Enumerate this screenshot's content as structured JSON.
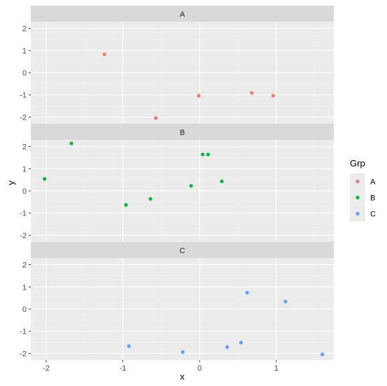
{
  "chart_data": {
    "type": "scatter",
    "facet_by": "Grp",
    "xlabel": "x",
    "ylabel": "y",
    "xlim": [
      -2.2,
      1.75
    ],
    "ylim": [
      -2.3,
      2.3
    ],
    "x_ticks": [
      -2,
      -1,
      0,
      1
    ],
    "x_tick_labels": [
      "-2",
      "-1",
      "0",
      "1"
    ],
    "y_ticks": [
      -2,
      -1,
      0,
      1,
      2
    ],
    "y_tick_labels": [
      "-2",
      "-1",
      "0",
      "1",
      "2"
    ],
    "grid": true,
    "legend": {
      "title": "Grp",
      "position": "right",
      "entries": [
        {
          "label": "A",
          "color": "#F8766D"
        },
        {
          "label": "B",
          "color": "#00BA38"
        },
        {
          "label": "C",
          "color": "#619CFF"
        }
      ]
    },
    "panels": [
      {
        "label": "A",
        "color": "#F8766D",
        "points": [
          {
            "x": -1.24,
            "y": 0.83
          },
          {
            "x": -0.57,
            "y": -2.04
          },
          {
            "x": -0.01,
            "y": -1.04
          },
          {
            "x": 0.68,
            "y": -0.91
          },
          {
            "x": 0.96,
            "y": -1.03
          }
        ]
      },
      {
        "label": "B",
        "color": "#00BA38",
        "points": [
          {
            "x": -2.02,
            "y": 0.54
          },
          {
            "x": -1.67,
            "y": 2.14
          },
          {
            "x": -0.96,
            "y": -0.63
          },
          {
            "x": -0.64,
            "y": -0.36
          },
          {
            "x": -0.11,
            "y": 0.23
          },
          {
            "x": 0.04,
            "y": 1.64
          },
          {
            "x": 0.11,
            "y": 1.64
          },
          {
            "x": 0.29,
            "y": 0.43
          }
        ]
      },
      {
        "label": "C",
        "color": "#619CFF",
        "points": [
          {
            "x": -0.92,
            "y": -1.67
          },
          {
            "x": -0.22,
            "y": -1.94
          },
          {
            "x": 0.36,
            "y": -1.71
          },
          {
            "x": 0.54,
            "y": -1.51
          },
          {
            "x": 0.62,
            "y": 0.74
          },
          {
            "x": 1.12,
            "y": 0.34
          },
          {
            "x": 1.6,
            "y": -2.04
          }
        ]
      }
    ]
  }
}
